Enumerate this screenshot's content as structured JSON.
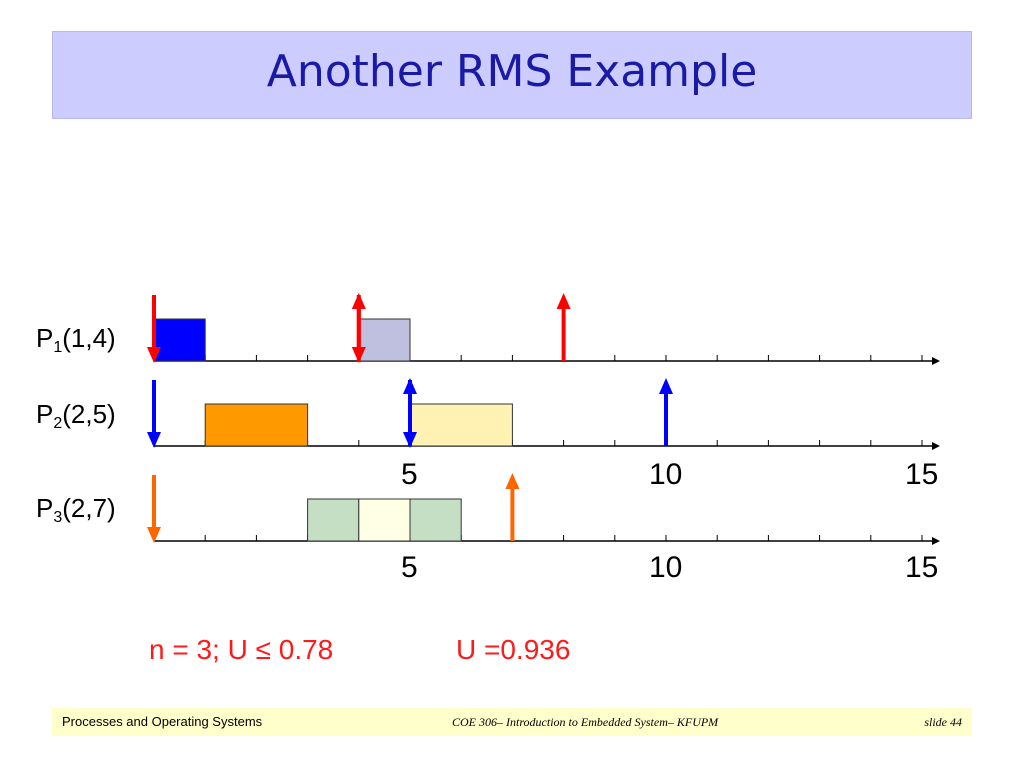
{
  "slide": {
    "title": "Another RMS Example",
    "processes": [
      {
        "name": "P",
        "sub": "1",
        "params": "(1,4)"
      },
      {
        "name": "P",
        "sub": "2",
        "params": "(2,5)"
      },
      {
        "name": "P",
        "sub": "3",
        "params": "(2,7)"
      }
    ],
    "axis_labels_1": [
      "5",
      "10",
      "15"
    ],
    "axis_labels_2": [
      "5",
      "10",
      "15"
    ],
    "formula_left": "n = 3;  U ≤ 0.78",
    "formula_right": "U =0.936"
  },
  "footer": {
    "left": "Processes and Operating Systems",
    "center": "COE 306– Introduction to Embedded System– KFUPM",
    "right": "slide 44"
  },
  "colors": {
    "title_bg": "#ccccff",
    "title_text": "#1a1aa6",
    "p1": "#0000ff",
    "p1_preempted": "#bfbfdf",
    "p2": "#ff9900",
    "p2_faded": "#fff2b3",
    "p3": "#c4dfc4",
    "p3_idle": "#ffffe6",
    "arrow_p1": "#ff0000",
    "arrow_p2": "#0000ff",
    "arrow_p3": "#ff6600",
    "formula": "#ff1a1a",
    "footer_bg": "#ffffcc"
  },
  "chart_data": {
    "type": "timeline",
    "xlim": [
      0,
      15
    ],
    "rows": [
      {
        "process": "P1(1,4)",
        "blocks": [
          {
            "start": 0,
            "end": 1,
            "color": "#0000ff"
          },
          {
            "start": 4,
            "end": 5,
            "color": "#bfbfdf"
          }
        ],
        "deadlines": [
          0,
          4
        ],
        "releases": [
          4,
          8
        ]
      },
      {
        "process": "P2(2,5)",
        "blocks": [
          {
            "start": 1,
            "end": 3,
            "color": "#ff9900"
          },
          {
            "start": 5,
            "end": 7,
            "color": "#fff2b3"
          }
        ],
        "deadlines": [
          0,
          5
        ],
        "releases": [
          5,
          10
        ]
      },
      {
        "process": "P3(2,7)",
        "blocks": [
          {
            "start": 3,
            "end": 4,
            "color": "#c4dfc4"
          },
          {
            "start": 4,
            "end": 5,
            "color": "#ffffe6"
          },
          {
            "start": 5,
            "end": 6,
            "color": "#c4dfc4"
          }
        ],
        "deadlines": [
          0
        ],
        "releases": [
          7
        ]
      }
    ]
  }
}
